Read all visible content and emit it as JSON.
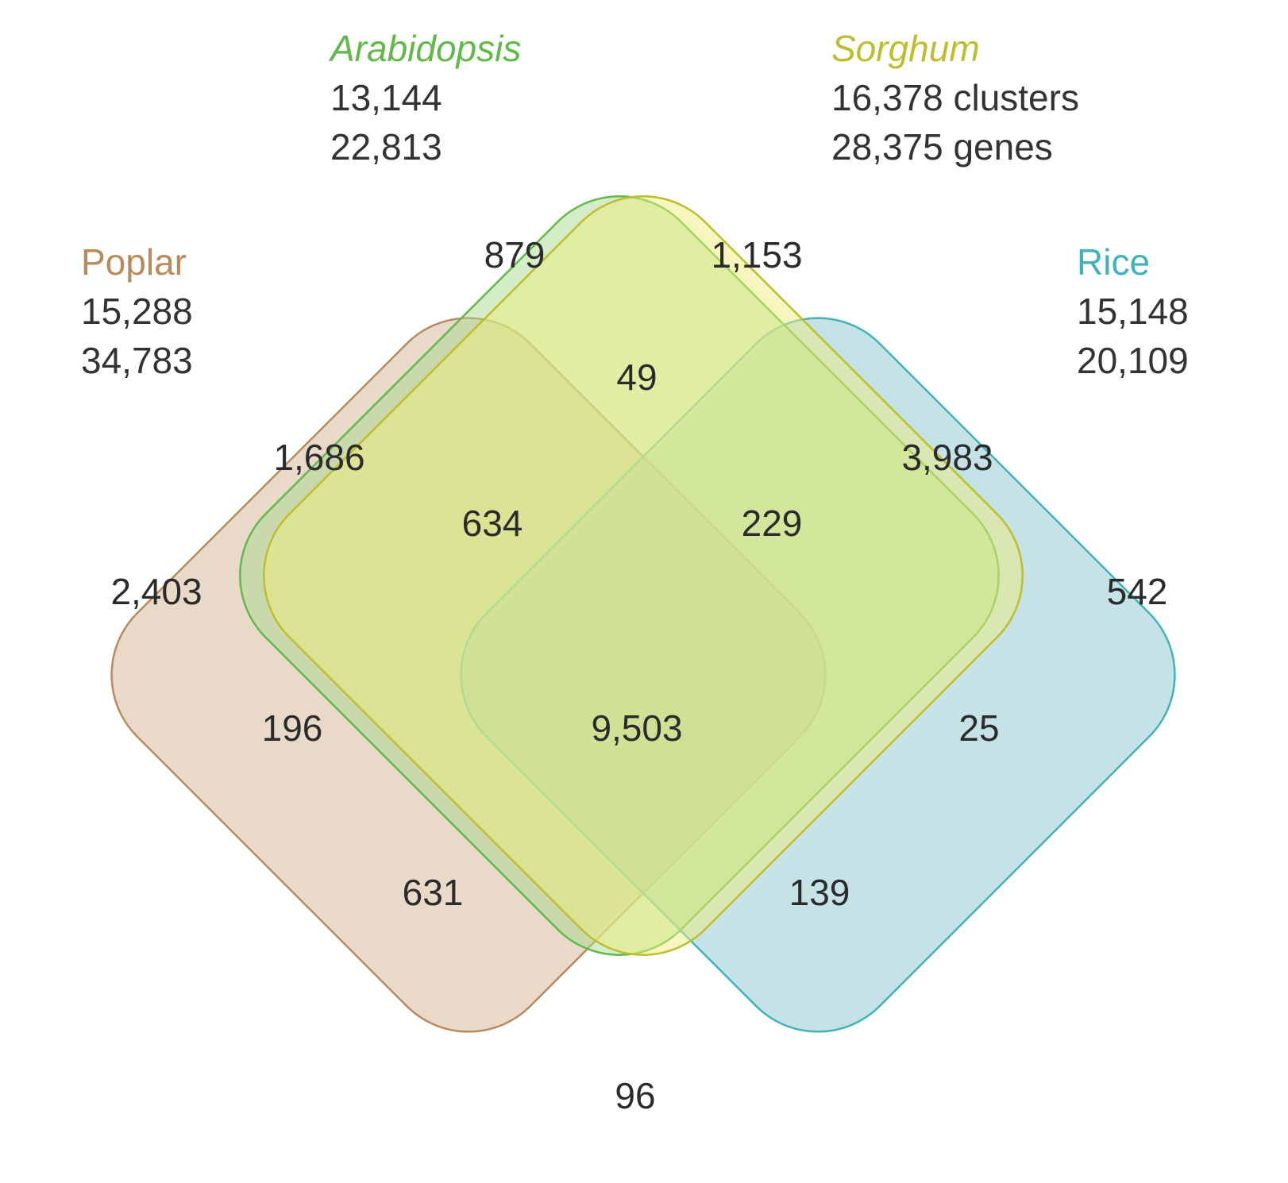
{
  "sets": [
    {
      "id": "poplar",
      "name": "Poplar",
      "italic": false,
      "clusters": "15,288",
      "genes": "34,783",
      "color": "#b98a5e"
    },
    {
      "id": "arabidopsis",
      "name": "Arabidopsis",
      "italic": true,
      "clusters": "13,144",
      "genes": "22,813",
      "color": "#62b84a"
    },
    {
      "id": "sorghum",
      "name": "Sorghum",
      "italic": true,
      "clusters": "16,378 clusters",
      "genes": "28,375 genes",
      "color": "#bdbd2e"
    },
    {
      "id": "rice",
      "name": "Rice",
      "italic": false,
      "clusters": "15,148",
      "genes": "20,109",
      "color": "#3fb3b8"
    }
  ],
  "shape_fill": {
    "poplar": "#d6b99a",
    "arabidopsis": "#a9d98f",
    "sorghum": "#eeee7e",
    "rice": "#96cbd2"
  },
  "regions": [
    {
      "sets": [
        "arabidopsis"
      ],
      "value": "879"
    },
    {
      "sets": [
        "sorghum"
      ],
      "value": "1,153"
    },
    {
      "sets": [
        "arabidopsis",
        "sorghum"
      ],
      "value": "49"
    },
    {
      "sets": [
        "poplar",
        "arabidopsis"
      ],
      "value": "1,686"
    },
    {
      "sets": [
        "sorghum",
        "rice"
      ],
      "value": "3,983"
    },
    {
      "sets": [
        "poplar",
        "arabidopsis",
        "sorghum"
      ],
      "value": "634"
    },
    {
      "sets": [
        "arabidopsis",
        "sorghum",
        "rice"
      ],
      "value": "229"
    },
    {
      "sets": [
        "poplar"
      ],
      "value": "2,403"
    },
    {
      "sets": [
        "rice"
      ],
      "value": "542"
    },
    {
      "sets": [
        "poplar",
        "sorghum"
      ],
      "value": "196"
    },
    {
      "sets": [
        "poplar",
        "arabidopsis",
        "sorghum",
        "rice"
      ],
      "value": "9,503"
    },
    {
      "sets": [
        "arabidopsis",
        "rice"
      ],
      "value": "25"
    },
    {
      "sets": [
        "poplar",
        "sorghum",
        "rice"
      ],
      "value": "631"
    },
    {
      "sets": [
        "poplar",
        "arabidopsis",
        "rice"
      ],
      "value": "139"
    },
    {
      "sets": [
        "poplar",
        "rice"
      ],
      "value": "96"
    }
  ]
}
